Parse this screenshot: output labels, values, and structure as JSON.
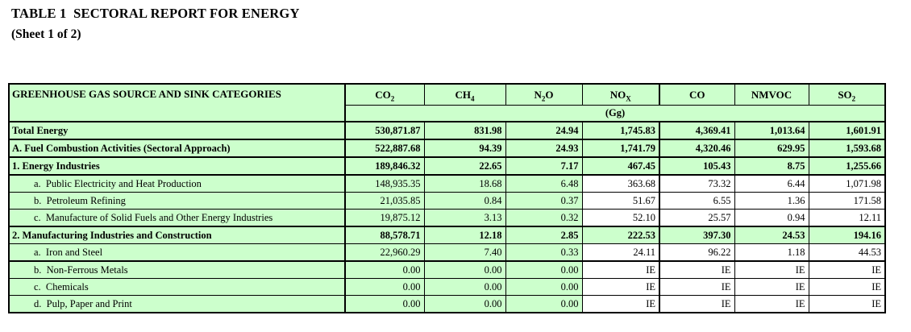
{
  "title": {
    "line1": "TABLE 1  SECTORAL REPORT FOR ENERGY",
    "line2": "(Sheet 1 of 2)"
  },
  "colors": {
    "cell_green": "#ccffcc",
    "cell_white": "#ffffff",
    "border": "#000000"
  },
  "table": {
    "category_header": "GREENHOUSE GAS SOURCE AND SINK CATEGORIES",
    "unit_label": "(Gg)",
    "gas_headers": [
      {
        "name": "CO2",
        "main": "CO",
        "sub": "2"
      },
      {
        "name": "CH4",
        "main": "CH",
        "sub": "4"
      },
      {
        "name": "N2O",
        "main": "N",
        "sub": "2",
        "post": "O"
      },
      {
        "name": "NOx",
        "main": "NO",
        "sub": "X"
      },
      {
        "name": "CO",
        "main": "CO"
      },
      {
        "name": "NMVOC",
        "main": "NMVOC"
      },
      {
        "name": "SO2",
        "main": "SO",
        "sub": "2"
      }
    ],
    "rows": [
      {
        "label": "Total Energy",
        "values": [
          "530,871.87",
          "831.98",
          "24.94",
          "1,745.83",
          "4,369.41",
          "1,013.64",
          "1,601.91"
        ]
      },
      {
        "label": "A. Fuel Combustion Activities (Sectoral Approach)",
        "values": [
          "522,887.68",
          "94.39",
          "24.93",
          "1,741.79",
          "4,320.46",
          "629.95",
          "1,593.68"
        ]
      },
      {
        "label": "1. Energy Industries",
        "values": [
          "189,846.32",
          "22.65",
          "7.17",
          "467.45",
          "105.43",
          "8.75",
          "1,255.66"
        ]
      },
      {
        "label": "a.  Public Electricity and Heat Production",
        "values": [
          "148,935.35",
          "18.68",
          "6.48",
          "363.68",
          "73.32",
          "6.44",
          "1,071.98"
        ]
      },
      {
        "label": "b.  Petroleum Refining",
        "values": [
          "21,035.85",
          "0.84",
          "0.37",
          "51.67",
          "6.55",
          "1.36",
          "171.58"
        ]
      },
      {
        "label": "c.  Manufacture of Solid Fuels and Other Energy Industries",
        "values": [
          "19,875.12",
          "3.13",
          "0.32",
          "52.10",
          "25.57",
          "0.94",
          "12.11"
        ]
      },
      {
        "label": "2. Manufacturing Industries and Construction",
        "values": [
          "88,578.71",
          "12.18",
          "2.85",
          "222.53",
          "397.30",
          "24.53",
          "194.16"
        ]
      },
      {
        "label": "a.  Iron and Steel",
        "values": [
          "22,960.29",
          "7.40",
          "0.33",
          "24.11",
          "96.22",
          "1.18",
          "44.53"
        ]
      },
      {
        "label": "b.  Non-Ferrous Metals",
        "values": [
          "0.00",
          "0.00",
          "0.00",
          "IE",
          "IE",
          "IE",
          "IE"
        ]
      },
      {
        "label": "c.  Chemicals",
        "values": [
          "0.00",
          "0.00",
          "0.00",
          "IE",
          "IE",
          "IE",
          "IE"
        ]
      },
      {
        "label": "d.  Pulp, Paper and Print",
        "values": [
          "0.00",
          "0.00",
          "0.00",
          "IE",
          "IE",
          "IE",
          "IE"
        ]
      }
    ]
  }
}
